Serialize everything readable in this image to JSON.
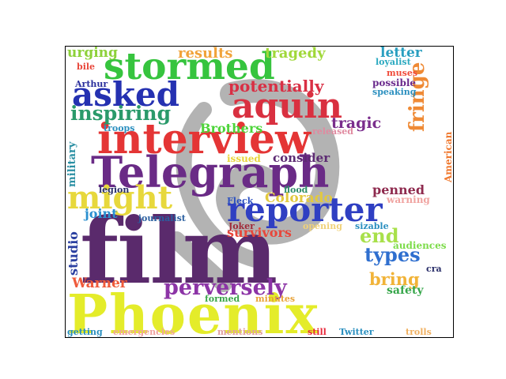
{
  "words": [
    {
      "text": "Phoenix",
      "color": "#e4ec2a"
    },
    {
      "text": "film",
      "color": "#5a2a6c"
    },
    {
      "text": "Telegraph",
      "color": "#6a2b86"
    },
    {
      "text": "interview",
      "color": "#e43535"
    },
    {
      "text": "stormed",
      "color": "#36c43e"
    },
    {
      "text": "reporter",
      "color": "#2f3fc2"
    },
    {
      "text": "aquin",
      "color": "#d93040"
    },
    {
      "text": "asked",
      "color": "#2531b1"
    },
    {
      "text": "might",
      "color": "#e7d83c"
    },
    {
      "text": "perversely",
      "color": "#8c34a6"
    },
    {
      "text": "fringe",
      "color": "#ef8a35"
    },
    {
      "text": "inspiring",
      "color": "#2a9a6a"
    },
    {
      "text": "potentially",
      "color": "#d92f44"
    },
    {
      "text": "types",
      "color": "#2f6fcf"
    },
    {
      "text": "end",
      "color": "#a8e04a"
    },
    {
      "text": "tragic",
      "color": "#7a2d8c"
    },
    {
      "text": "bring",
      "color": "#f1b338"
    },
    {
      "text": "Warner",
      "color": "#ef5a3a"
    },
    {
      "text": "survivors",
      "color": "#e8463a"
    },
    {
      "text": "Colorado",
      "color": "#e2c93f"
    },
    {
      "text": "penned",
      "color": "#8e2a4e"
    },
    {
      "text": "results",
      "color": "#f1a33a"
    },
    {
      "text": "tragedy",
      "color": "#a1d83a"
    },
    {
      "text": "urging",
      "color": "#8dd13a"
    },
    {
      "text": "letter",
      "color": "#2a9fc0"
    },
    {
      "text": "Brothers",
      "color": "#4ed43a"
    },
    {
      "text": "studio",
      "color": "#2a3fa0"
    },
    {
      "text": "joint",
      "color": "#2a8fcf"
    },
    {
      "text": "consider",
      "color": "#5c2a72"
    },
    {
      "text": "military",
      "color": "#2a8fa3"
    },
    {
      "text": "American",
      "color": "#f0792f"
    },
    {
      "text": "safety",
      "color": "#36a64a"
    },
    {
      "text": "audiences",
      "color": "#7ddc4a"
    },
    {
      "text": "Arthur",
      "color": "#2a2f9c"
    },
    {
      "text": "troops",
      "color": "#2a8fbf"
    },
    {
      "text": "issued",
      "color": "#e8d43a"
    },
    {
      "text": "Fleck",
      "color": "#2a4fc0"
    },
    {
      "text": "Joker",
      "color": "#a02a38"
    },
    {
      "text": "flood",
      "color": "#2f8f6a"
    },
    {
      "text": "legion",
      "color": "#2a2f6a"
    },
    {
      "text": "journalist",
      "color": "#2a5fa0"
    },
    {
      "text": "released",
      "color": "#e08aa0"
    },
    {
      "text": "warning",
      "color": "#f0a3a0"
    },
    {
      "text": "opening",
      "color": "#f0d27a"
    },
    {
      "text": "sizable",
      "color": "#2a8fbf"
    },
    {
      "text": "possible",
      "color": "#6a2a8c"
    },
    {
      "text": "speaking",
      "color": "#2a8fbf"
    },
    {
      "text": "loyalist",
      "color": "#2aa9c0"
    },
    {
      "text": "muses",
      "color": "#f04a3a"
    },
    {
      "text": "bile",
      "color": "#e8463a"
    },
    {
      "text": "formed",
      "color": "#3aa64a"
    },
    {
      "text": "minutes",
      "color": "#e8a33a"
    },
    {
      "text": "cra",
      "color": "#2a2f6a"
    },
    {
      "text": "getting",
      "color": "#2a8fbf"
    },
    {
      "text": "emergencies",
      "color": "#f0a3a0"
    },
    {
      "text": "mentions",
      "color": "#e0a0a0"
    },
    {
      "text": "still",
      "color": "#e8283a"
    },
    {
      "text": "Twitter",
      "color": "#2a8fbf"
    },
    {
      "text": "trolls",
      "color": "#f0b060"
    }
  ]
}
